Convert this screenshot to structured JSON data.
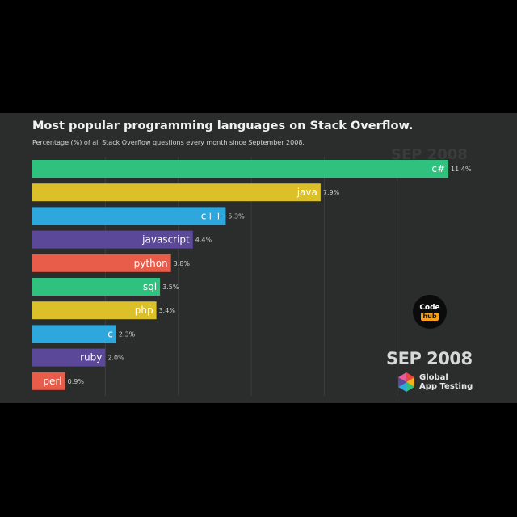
{
  "chart_data": {
    "type": "bar",
    "orientation": "horizontal",
    "title": "Most popular programming languages on Stack Overflow.",
    "subtitle": "Percentage (%) of all Stack Overflow questions every month since September 2008.",
    "xlabel": "",
    "ylabel": "",
    "xlim": [
      0,
      11.4
    ],
    "grid": true,
    "date": "SEP 2008",
    "date_watermark": "SEP 2008",
    "categories": [
      "c#",
      "java",
      "c++",
      "javascript",
      "python",
      "sql",
      "php",
      "c",
      "ruby",
      "perl"
    ],
    "values": [
      11.4,
      7.9,
      5.3,
      4.4,
      3.8,
      3.5,
      3.4,
      2.3,
      2.0,
      0.9
    ],
    "value_labels": [
      "11.4%",
      "7.9%",
      "5.3%",
      "4.4%",
      "3.8%",
      "3.5%",
      "3.4%",
      "2.3%",
      "2.0%",
      "0.9%"
    ],
    "colors": [
      "#2ec27e",
      "#dcc02a",
      "#2ea7dc",
      "#5b4898",
      "#e85c4a",
      "#2ec27e",
      "#dcc02a",
      "#2ea7dc",
      "#5b4898",
      "#e85c4a"
    ]
  },
  "branding": {
    "logo_line1": "Global",
    "logo_line2": "App Testing",
    "badge_top": "Code",
    "badge_bottom": "hub"
  }
}
